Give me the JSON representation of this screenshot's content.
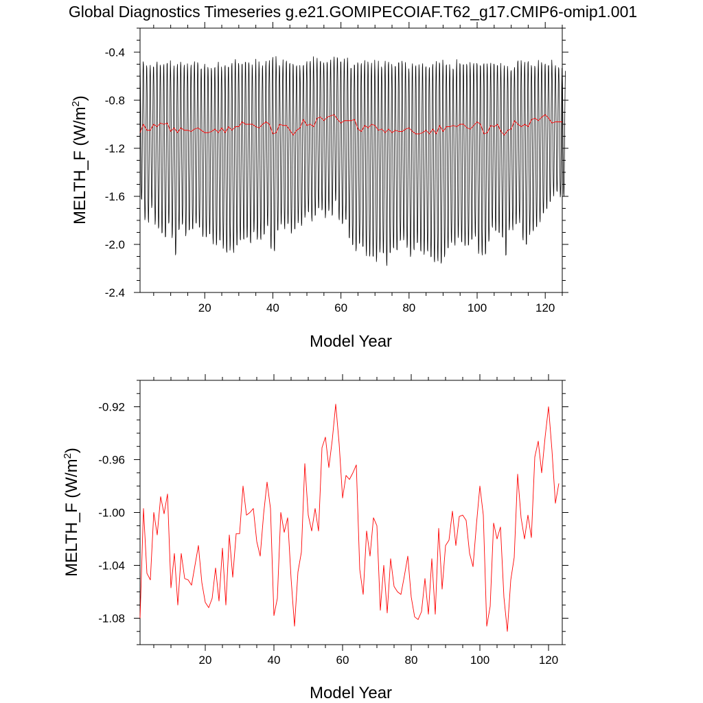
{
  "figure": {
    "title": "Global Diagnostics Timeseries g.e21.GOMIPECOIAF.T62_g17.CMIP6-omip1.001"
  },
  "chart_data": [
    {
      "type": "line",
      "xlabel": "Model Year",
      "ylabel_main": "MELTH_F (W/m",
      "ylabel_sup": "2",
      "ylabel_close": ")",
      "xlim": [
        1,
        125
      ],
      "ylim": [
        -2.4,
        -0.2
      ],
      "x_ticks": [
        20,
        40,
        60,
        80,
        100,
        120
      ],
      "x_tick_labels": [
        "20",
        "40",
        "60",
        "80",
        "100",
        "120"
      ],
      "y_ticks": [
        -2.4,
        -2.0,
        -1.6,
        -1.2,
        -0.8,
        -0.4
      ],
      "y_tick_labels": [
        "-2.4",
        "-2.0",
        "-1.6",
        "-1.2",
        "-0.8",
        "-0.4"
      ],
      "series": [
        {
          "description_color": "#000000",
          "kind": "monthly",
          "points_per_year": 12,
          "annual_max": [
            -0.45,
            -0.49,
            -0.52,
            -0.48,
            -0.5,
            -0.46,
            -0.5,
            -0.49,
            -0.45,
            -0.53,
            -0.5,
            -0.47,
            -0.5,
            -0.48,
            -0.52,
            -0.5,
            -0.47,
            -0.5,
            -0.52,
            -0.49,
            -0.5,
            -0.51,
            -0.5,
            -0.48,
            -0.52,
            -0.5,
            -0.5,
            -0.49,
            -0.45,
            -0.5,
            -0.47,
            -0.46,
            -0.49,
            -0.52,
            -0.45,
            -0.5,
            -0.48,
            -0.47,
            -0.44,
            -0.43,
            -0.48,
            -0.5,
            -0.46,
            -0.47,
            -0.49,
            -0.5,
            -0.51,
            -0.52,
            -0.47,
            -0.46,
            -0.43,
            -0.48,
            -0.45,
            -0.46,
            -0.47,
            -0.5,
            -0.46,
            -0.42,
            -0.44,
            -0.47,
            -0.44,
            -0.49,
            -0.5,
            -0.48,
            -0.5,
            -0.47,
            -0.46,
            -0.49,
            -0.46,
            -0.5,
            -0.47,
            -0.49,
            -0.46,
            -0.48,
            -0.5,
            -0.48,
            -0.47,
            -0.46,
            -0.5,
            -0.52,
            -0.48,
            -0.47,
            -0.5,
            -0.49,
            -0.5,
            -0.51,
            -0.49,
            -0.46,
            -0.45,
            -0.49,
            -0.48,
            -0.51,
            -0.53,
            -0.46,
            -0.49,
            -0.48,
            -0.47,
            -0.5,
            -0.45,
            -0.5,
            -0.47,
            -0.46,
            -0.5,
            -0.48,
            -0.47,
            -0.49,
            -0.52,
            -0.5,
            -0.52,
            -0.51,
            -0.48,
            -0.46,
            -0.5,
            -0.48,
            -0.47,
            -0.49,
            -0.51,
            -0.45,
            -0.47,
            -0.49,
            -0.47,
            -0.52,
            -0.5,
            -0.51,
            -0.53
          ],
          "annual_min": [
            -1.65,
            -1.8,
            -1.82,
            -1.7,
            -1.84,
            -1.88,
            -1.92,
            -1.98,
            -1.85,
            -1.95,
            -2.1,
            -1.9,
            -1.86,
            -1.94,
            -1.88,
            -1.9,
            -1.86,
            -1.87,
            -1.96,
            -1.95,
            -1.92,
            -2.0,
            -2.02,
            -2.0,
            -2.04,
            -2.1,
            -2.05,
            -2.08,
            -2.02,
            -2.0,
            -1.97,
            -1.96,
            -2.0,
            -1.92,
            -1.96,
            -1.98,
            -1.93,
            -1.85,
            -2.05,
            -2.08,
            -1.9,
            -1.84,
            -1.88,
            -1.83,
            -1.93,
            -1.9,
            -1.84,
            -1.86,
            -1.78,
            -1.74,
            -1.82,
            -1.77,
            -1.7,
            -1.72,
            -1.78,
            -1.74,
            -1.76,
            -1.66,
            -1.8,
            -1.86,
            -1.82,
            -1.95,
            -2.05,
            -2.08,
            -2.02,
            -2.06,
            -2.1,
            -2.13,
            -2.12,
            -2.15,
            -2.08,
            -2.1,
            -2.19,
            -2.1,
            -2.05,
            -2.06,
            -2.0,
            -1.97,
            -2.05,
            -2.12,
            -2.05,
            -2.0,
            -2.08,
            -2.1,
            -2.08,
            -2.14,
            -2.17,
            -2.15,
            -2.18,
            -2.11,
            -2.06,
            -2.0,
            -2.03,
            -1.95,
            -2.01,
            -2.04,
            -2.02,
            -1.98,
            -1.94,
            -2.08,
            -2.1,
            -2.12,
            -2.0,
            -1.88,
            -1.9,
            -1.93,
            -1.96,
            -2.12,
            -1.9,
            -1.88,
            -1.85,
            -1.82,
            -1.98,
            -2.0,
            -1.92,
            -1.9,
            -1.86,
            -1.82,
            -1.78,
            -1.7,
            -1.65,
            -1.6,
            -1.58,
            -1.62,
            -1.6
          ]
        },
        {
          "description_color": "#ff0000",
          "kind": "annual",
          "values": [
            -1.07,
            -1.0,
            -1.05,
            -1.05,
            -1.0,
            -1.02,
            -0.99,
            -1.0,
            -0.99,
            -1.06,
            -1.03,
            -1.07,
            -1.03,
            -1.05,
            -1.05,
            -1.06,
            -1.04,
            -1.03,
            -1.05,
            -1.07,
            -1.07,
            -1.06,
            -1.04,
            -1.07,
            -1.03,
            -1.07,
            -1.02,
            -1.05,
            -1.02,
            -1.02,
            -0.98,
            -1.0,
            -1.0,
            -1.0,
            -1.02,
            -1.03,
            -1.0,
            -0.98,
            -1.0,
            -1.08,
            -1.07,
            -1.0,
            -1.01,
            -1.01,
            -1.05,
            -1.09,
            -1.05,
            -1.03,
            -0.96,
            -1.01,
            -1.0,
            -1.02,
            -0.95,
            -0.94,
            -0.97,
            -0.94,
            -0.93,
            -0.92,
            -0.96,
            -0.99,
            -0.97,
            -0.97,
            -0.97,
            -0.96,
            -1.04,
            -1.06,
            -1.01,
            -1.03,
            -1.0,
            -1.01,
            -1.05,
            -1.04,
            -1.07,
            -1.04,
            -1.07,
            -1.05,
            -1.06,
            -1.06,
            -1.04,
            -1.03,
            -1.06,
            -1.08,
            -1.08,
            -1.07,
            -1.05,
            -1.08,
            -1.04,
            -1.08,
            -1.01,
            -1.06,
            -1.02,
            -1.02,
            -1.01,
            -1.02,
            -1.0,
            -1.0,
            -1.03,
            -1.04,
            -1.01,
            -0.98,
            -1.0,
            -1.08,
            -1.07,
            -1.01,
            -1.02,
            -1.0,
            -1.06,
            -1.09,
            -1.05,
            -1.04,
            -0.97,
            -1.0,
            -1.02,
            -1.0,
            -1.02,
            -0.96,
            -0.95,
            -0.97,
            -0.94,
            -0.92,
            -0.95,
            -0.99,
            -0.98,
            -0.98,
            -0.98
          ]
        }
      ]
    },
    {
      "type": "line",
      "xlabel": "Model Year",
      "ylabel_main": "MELTH_F (W/m",
      "ylabel_sup": "2",
      "ylabel_close": ")",
      "xlim": [
        1,
        124
      ],
      "ylim": [
        -1.1,
        -0.9
      ],
      "x_ticks": [
        20,
        40,
        60,
        80,
        100,
        120
      ],
      "x_tick_labels": [
        "20",
        "40",
        "60",
        "80",
        "100",
        "120"
      ],
      "y_ticks": [
        -1.08,
        -1.04,
        -1.0,
        -0.96,
        -0.92
      ],
      "y_tick_labels": [
        "-1.08",
        "-1.04",
        "-1.00",
        "-0.96",
        "-0.92"
      ],
      "series": [
        {
          "description_color": "#ff0000",
          "kind": "annual",
          "values": [
            -1.08,
            -0.997,
            -1.046,
            -1.051,
            -1.0,
            -1.017,
            -0.988,
            -1.001,
            -0.986,
            -1.057,
            -1.031,
            -1.07,
            -1.031,
            -1.05,
            -1.051,
            -1.055,
            -1.04,
            -1.025,
            -1.053,
            -1.068,
            -1.072,
            -1.065,
            -1.042,
            -1.067,
            -1.027,
            -1.07,
            -1.017,
            -1.049,
            -1.016,
            -1.016,
            -0.98,
            -1.002,
            -1.0,
            -0.997,
            -1.022,
            -1.033,
            -1.001,
            -0.977,
            -0.997,
            -1.078,
            -1.065,
            -1.0,
            -1.015,
            -1.004,
            -1.05,
            -1.086,
            -1.045,
            -1.03,
            -0.963,
            -1.002,
            -1.014,
            -0.997,
            -1.014,
            -0.951,
            -0.943,
            -0.966,
            -0.945,
            -0.918,
            -0.948,
            -0.989,
            -0.972,
            -0.975,
            -0.97,
            -0.964,
            -1.043,
            -1.062,
            -1.014,
            -1.033,
            -1.004,
            -1.01,
            -1.074,
            -1.04,
            -1.076,
            -1.035,
            -1.056,
            -1.06,
            -1.062,
            -1.048,
            -1.033,
            -1.064,
            -1.079,
            -1.081,
            -1.075,
            -1.05,
            -1.077,
            -1.035,
            -1.077,
            -1.012,
            -1.058,
            -1.025,
            -1.021,
            -0.999,
            -1.025,
            -1.003,
            -1.002,
            -1.006,
            -1.031,
            -1.041,
            -1.009,
            -0.98,
            -1.002,
            -1.086,
            -1.071,
            -1.008,
            -1.02,
            -1.011,
            -1.064,
            -1.09,
            -1.051,
            -1.034,
            -0.971,
            -1.004,
            -1.02,
            -1.002,
            -1.019,
            -0.958,
            -0.946,
            -0.97,
            -0.943,
            -0.92,
            -0.953,
            -0.993,
            -0.978
          ]
        }
      ]
    }
  ]
}
